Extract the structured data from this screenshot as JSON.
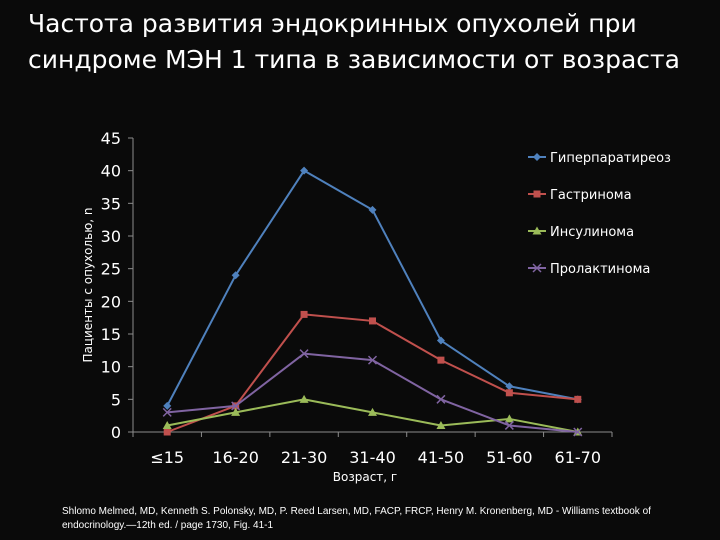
{
  "title_lines": [
    "Частота развития эндокринных опухолей при",
    "синдроме МЭН 1 типа в зависимости от возраста"
  ],
  "caption": "Shlomo Melmed, MD, Kenneth S. Polonsky, MD, P. Reed Larsen, MD, FACP, FRCP, Henry M. Kronenberg, MD - Williams textbook of endocrinology.—12th ed. / page 1730, Fig. 41-1",
  "chart_data": {
    "type": "line",
    "title": "",
    "xlabel": "Возраст, г",
    "ylabel": "Пациенты с опухолью, n",
    "categories": [
      "≤15",
      "16-20",
      "21-30",
      "31-40",
      "41-50",
      "51-60",
      "61-70"
    ],
    "ylim": [
      0,
      45
    ],
    "yticks": [
      0,
      5,
      10,
      15,
      20,
      25,
      30,
      35,
      40,
      45
    ],
    "grid": false,
    "legend_position": "right",
    "series": [
      {
        "name": "Гиперпаратиреоз",
        "values": [
          4,
          24,
          40,
          34,
          14,
          7,
          5
        ],
        "color": "#4f81bd",
        "marker": "diamond"
      },
      {
        "name": "Гастринома",
        "values": [
          0,
          4,
          18,
          17,
          11,
          6,
          5
        ],
        "color": "#c0504d",
        "marker": "square"
      },
      {
        "name": "Инсулинома",
        "values": [
          1,
          3,
          5,
          3,
          1,
          2,
          0
        ],
        "color": "#9bbb59",
        "marker": "triangle"
      },
      {
        "name": "Пролактинома",
        "values": [
          3,
          4,
          12,
          11,
          5,
          1,
          0
        ],
        "color": "#8064a2",
        "marker": "x"
      }
    ]
  }
}
